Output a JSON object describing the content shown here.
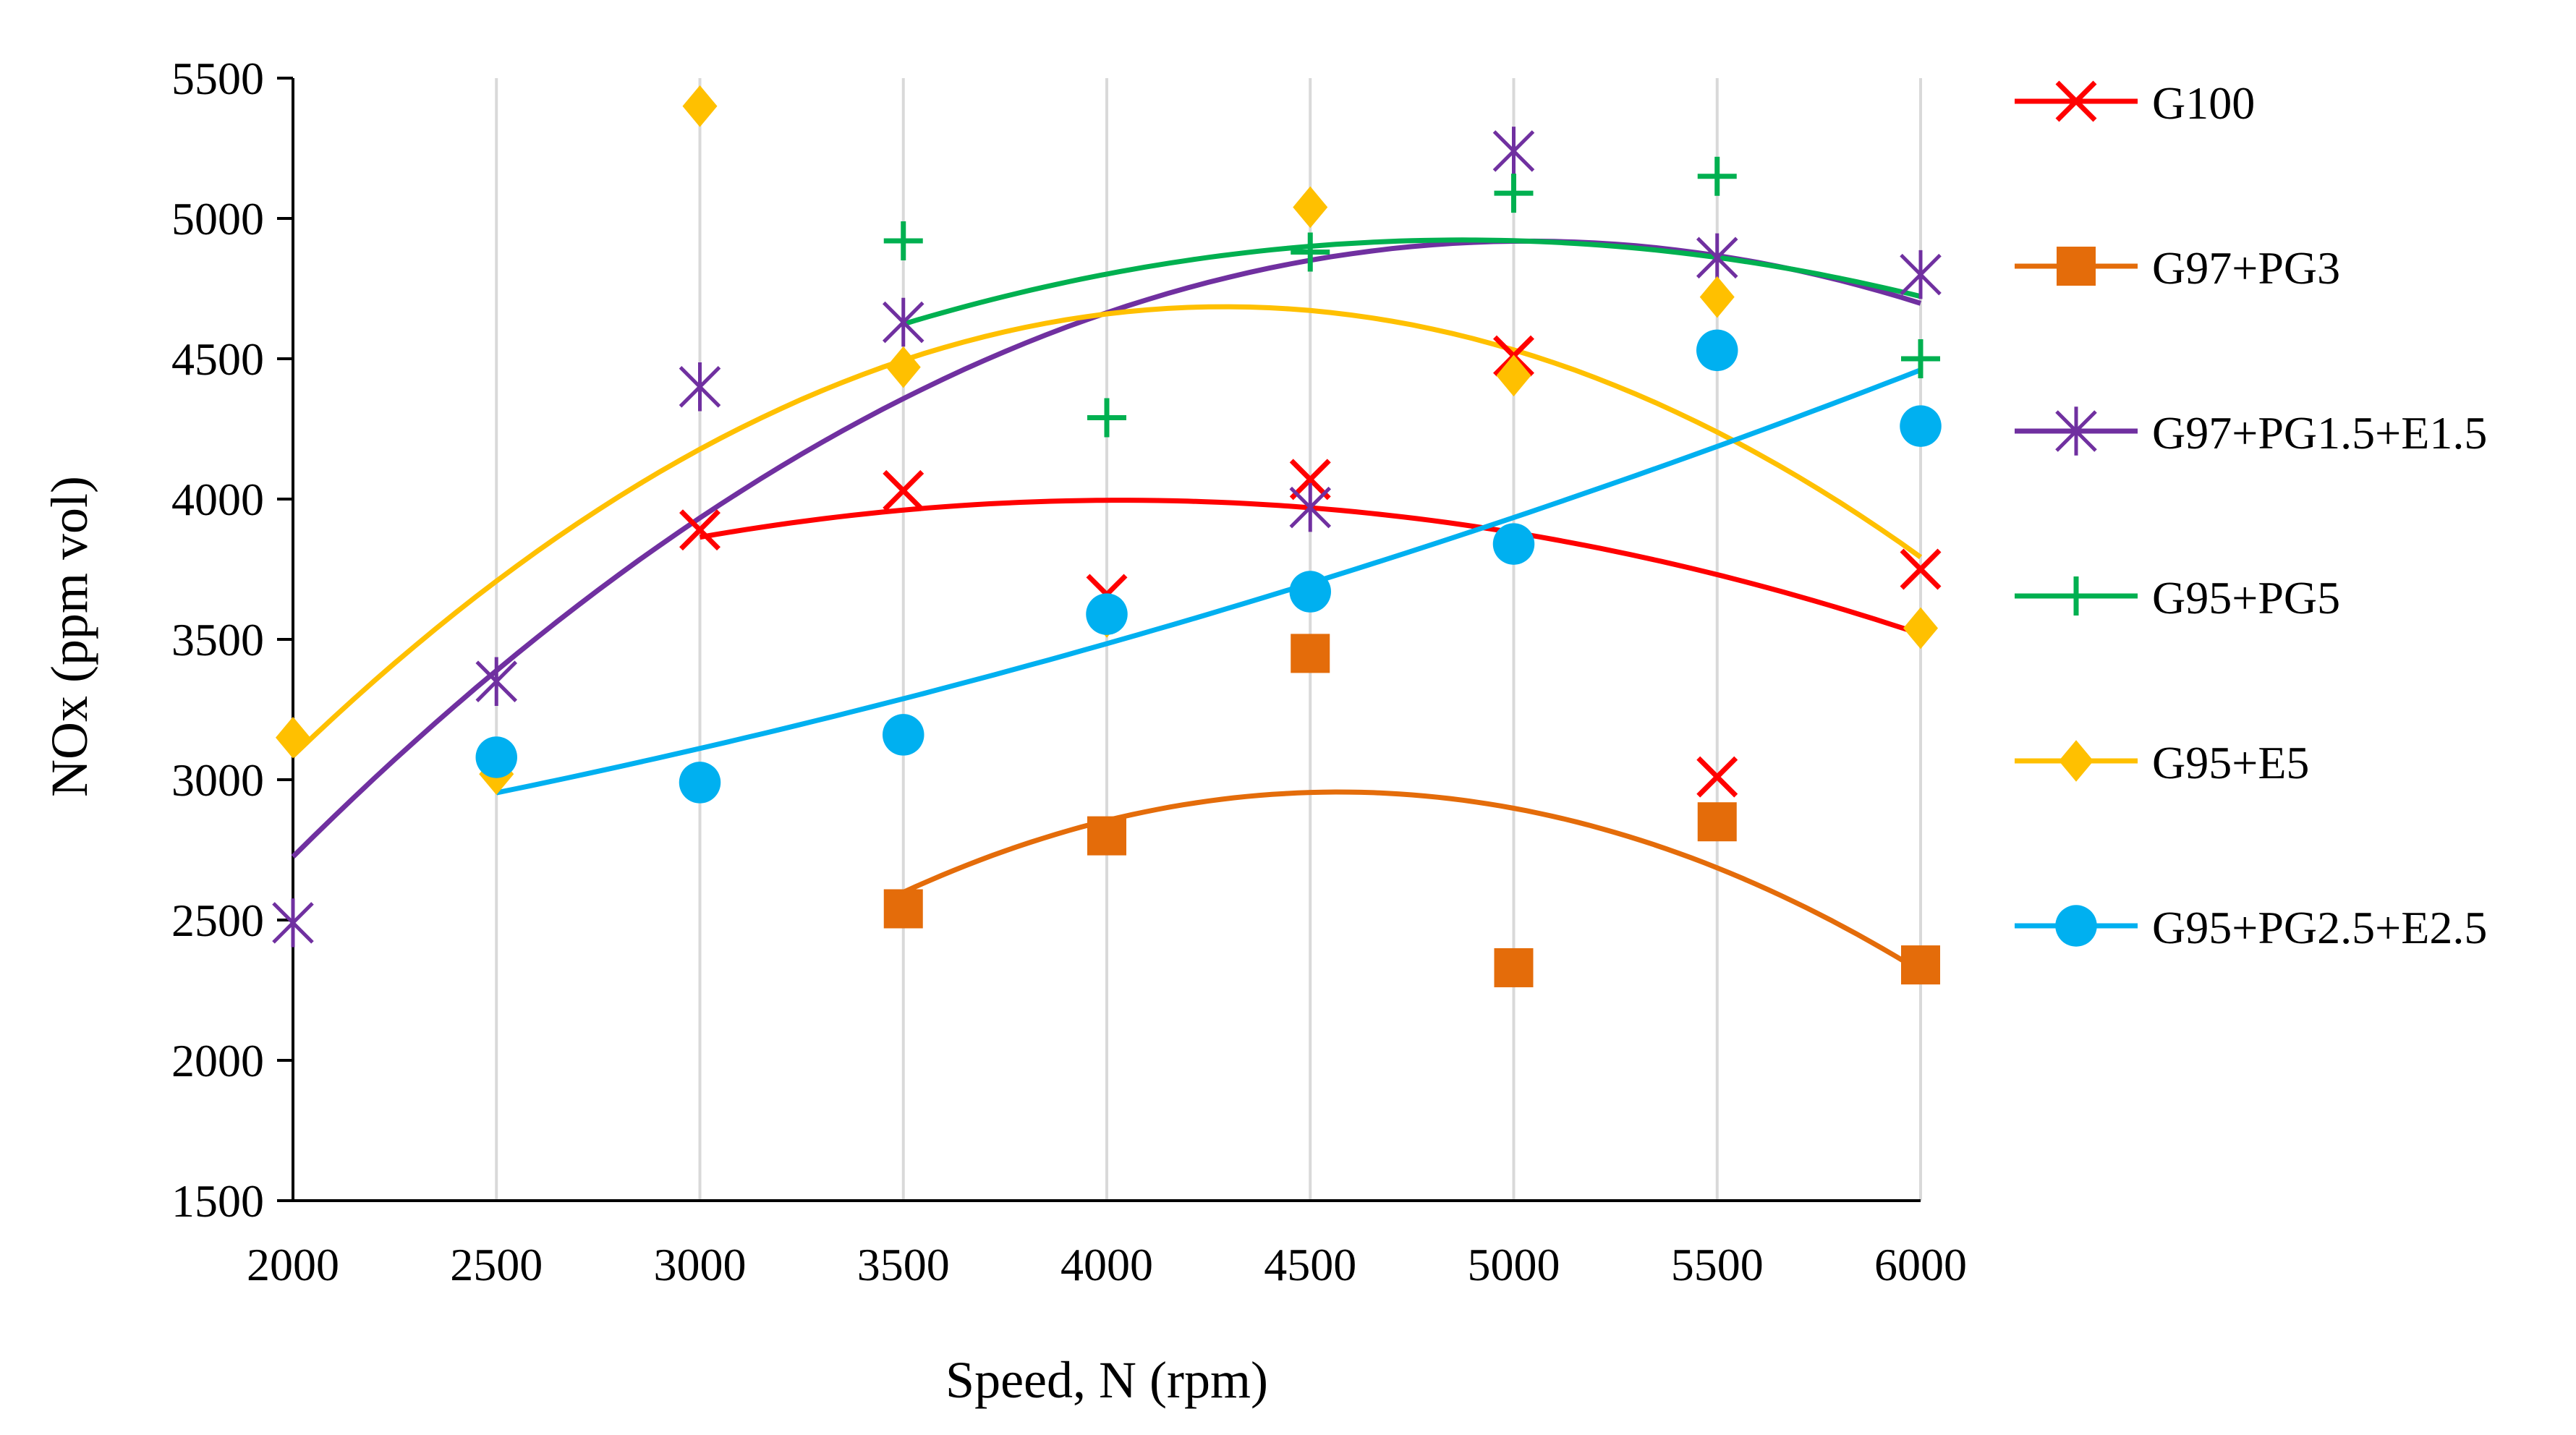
{
  "chart_data": {
    "type": "scatter",
    "title": "",
    "xlabel": "Speed, N (rpm)",
    "ylabel": "NOx (ppm vol)",
    "xlim": [
      2000,
      6000
    ],
    "ylim": [
      1500,
      5500
    ],
    "xticks": [
      "2000",
      "2500",
      "3000",
      "3500",
      "4000",
      "4500",
      "5000",
      "5500",
      "6000"
    ],
    "yticks": [
      "1500",
      "2000",
      "2500",
      "3000",
      "3500",
      "4000",
      "4500",
      "5000",
      "5500"
    ],
    "grid": true,
    "legend_position": "right",
    "trendline": "polynomial order 2",
    "series": [
      {
        "name": "G100",
        "marker": "x",
        "color": "#ff0000",
        "x": [
          3000,
          3500,
          4000,
          4500,
          5000,
          5500,
          6000
        ],
        "y": [
          3890,
          4030,
          3660,
          4070,
          4510,
          3010,
          3750
        ]
      },
      {
        "name": "G97+PG3",
        "marker": "square",
        "color": "#e46c0a",
        "x": [
          3500,
          4000,
          4500,
          5000,
          5500,
          6000
        ],
        "y": [
          2540,
          2800,
          3450,
          2330,
          2850,
          2340
        ]
      },
      {
        "name": "G97+PG1.5+E1.5",
        "marker": "star",
        "color": "#7030a0",
        "x": [
          2000,
          2500,
          3000,
          3500,
          4500,
          5000,
          5500,
          6000
        ],
        "y": [
          2490,
          3350,
          4400,
          4630,
          3970,
          5240,
          4860,
          4800
        ]
      },
      {
        "name": "G95+PG5",
        "marker": "plus",
        "color": "#00b050",
        "x": [
          3500,
          4000,
          4500,
          5000,
          5500,
          6000
        ],
        "y": [
          4920,
          4290,
          4880,
          5090,
          5150,
          4500
        ]
      },
      {
        "name": "G95+E5",
        "marker": "diamond",
        "color": "#ffc000",
        "x": [
          2000,
          2500,
          3000,
          3500,
          4000,
          4500,
          5000,
          5500,
          6000
        ],
        "y": [
          3150,
          3020,
          5400,
          4470,
          3580,
          5040,
          4440,
          4720,
          3540
        ]
      },
      {
        "name": "G95+PG2.5+E2.5",
        "marker": "circle",
        "color": "#00b0f0",
        "x": [
          2500,
          3000,
          3500,
          4000,
          4500,
          5000,
          5500,
          6000
        ],
        "y": [
          3080,
          2990,
          3160,
          3590,
          3670,
          3840,
          4530,
          4260
        ]
      }
    ]
  }
}
